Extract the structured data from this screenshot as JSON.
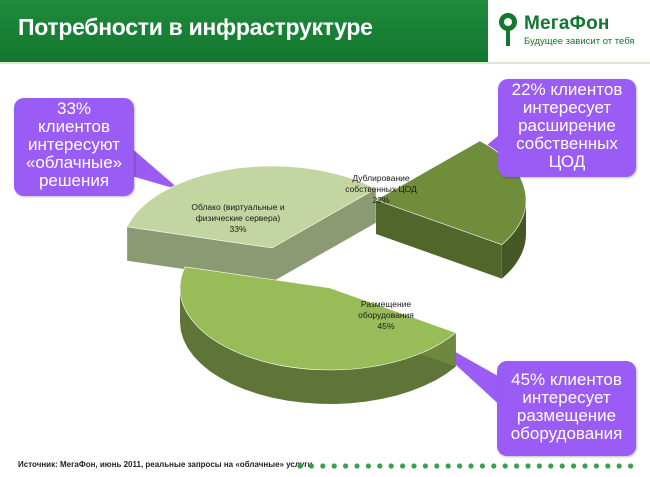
{
  "header": {
    "title": "Потребности в инфраструктуре",
    "logo_text": "МегаФон",
    "logo_tagline": "Будущее зависит от тебя"
  },
  "chart_data": {
    "type": "pie",
    "title": "",
    "slices": [
      {
        "label_lines": [
          "Облако (виртуальные и",
          "физические сервера)"
        ],
        "value": 33,
        "value_label": "33%",
        "color": "#c3d6a1"
      },
      {
        "label_lines": [
          "Дублирование",
          "собственных ЦОД"
        ],
        "value": 22,
        "value_label": "22%",
        "color": "#6f8d3a"
      },
      {
        "label_lines": [
          "Размещение",
          "оборудования"
        ],
        "value": 45,
        "value_label": "45%",
        "color": "#98bd58"
      }
    ]
  },
  "callouts": [
    {
      "lines": [
        "33%",
        "клиентов",
        "интересуют",
        "«облачные»",
        "решения"
      ]
    },
    {
      "lines": [
        "22% клиентов",
        "интересует",
        "расширение",
        "собственных",
        "ЦОД"
      ]
    },
    {
      "lines": [
        "45% клиентов",
        "интересует",
        "размещение",
        "оборудования"
      ]
    }
  ],
  "footer": {
    "source": "Источник: МегаФон, июнь 2011, реальные запросы на «облачные» услуги"
  },
  "colors": {
    "brand_green": "#12772f",
    "callout_purple": "#9a5cf5"
  }
}
